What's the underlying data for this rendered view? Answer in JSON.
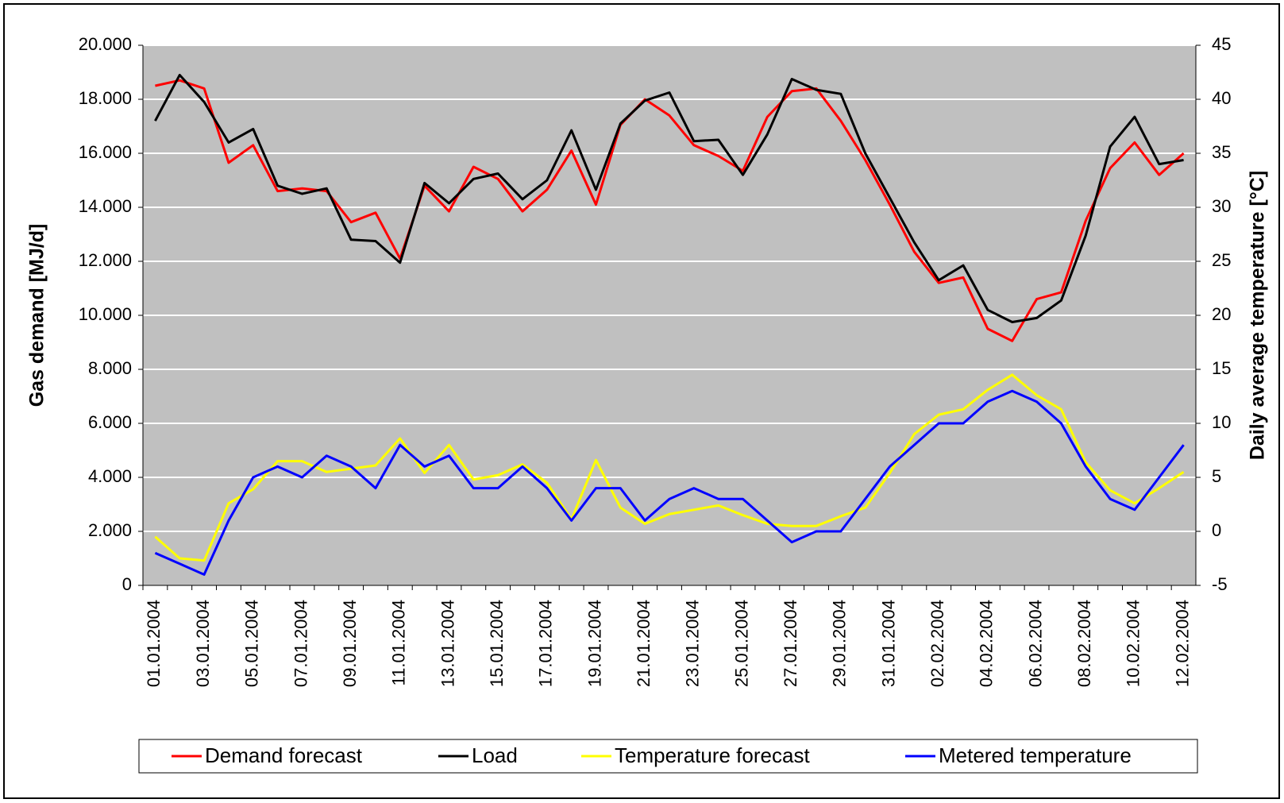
{
  "chart_data": {
    "type": "line",
    "categories": [
      "01.01.2004",
      null,
      "03.01.2004",
      null,
      "05.01.2004",
      null,
      "07.01.2004",
      null,
      "09.01.2004",
      null,
      "11.01.2004",
      null,
      "13.01.2004",
      null,
      "15.01.2004",
      null,
      "17.01.2004",
      null,
      "19.01.2004",
      null,
      "21.01.2004",
      null,
      "23.01.2004",
      null,
      "25.01.2004",
      null,
      "27.01.2004",
      null,
      "29.01.2004",
      null,
      "31.01.2004",
      null,
      "02.02.2004",
      null,
      "04.02.2004",
      null,
      "06.02.2004",
      null,
      "08.02.2004",
      null,
      "10.02.2004",
      null,
      "12.02.2004"
    ],
    "ylabel": "Gas demand [MJ/d]",
    "y2label": "Daily average temperature [°C]",
    "ylim": [
      0,
      20000
    ],
    "yticks": [
      0,
      {
        "value": 2000,
        "label": "2.000"
      },
      {
        "value": 4000,
        "label": "4.000"
      },
      {
        "value": 6000,
        "label": "6.000"
      },
      {
        "value": 8000,
        "label": "8.000"
      },
      {
        "value": 10000,
        "label": "10.000"
      },
      {
        "value": 12000,
        "label": "12.000"
      },
      {
        "value": 14000,
        "label": "14.000"
      },
      {
        "value": 16000,
        "label": "16.000"
      },
      {
        "value": 18000,
        "label": "18.000"
      },
      {
        "value": 20000,
        "label": "20.000"
      }
    ],
    "y2lim": [
      -5,
      45
    ],
    "y2ticks": [
      -5,
      0,
      5,
      10,
      15,
      20,
      25,
      30,
      35,
      40,
      45
    ],
    "grid": true,
    "legend": "bottom",
    "series": [
      {
        "name": "Demand forecast",
        "color": "#ff0000",
        "values": [
          18500,
          18700,
          18400,
          15650,
          16300,
          14600,
          14700,
          14600,
          13450,
          13800,
          12100,
          14800,
          13850,
          15500,
          15050,
          13850,
          14650,
          16100,
          14100,
          17050,
          18000,
          17400,
          16300,
          15900,
          15350,
          17350,
          18300,
          18400,
          17200,
          15750,
          14100,
          12350,
          11200,
          11400,
          9500,
          9050,
          10600,
          10850,
          13500,
          15450,
          16400,
          15200,
          16000
        ]
      },
      {
        "name": "Load",
        "color": "#000000",
        "values": [
          17200,
          18900,
          17900,
          16400,
          16900,
          14800,
          14500,
          14700,
          12800,
          12750,
          11950,
          14900,
          14150,
          15050,
          15250,
          14300,
          15000,
          16850,
          14650,
          17100,
          17950,
          18250,
          16450,
          16500,
          15200,
          16700,
          18750,
          18350,
          18200,
          16000,
          14350,
          12700,
          11300,
          11850,
          10200,
          9750,
          9900,
          10550,
          12950,
          16250,
          17350,
          15600,
          15750
        ]
      },
      {
        "name": "Temperature forecast",
        "color": "#ffff00",
        "axis": "y2",
        "values": [
          -0.5,
          -2.5,
          -2.7,
          2.6,
          3.9,
          6.5,
          6.5,
          5.5,
          5.8,
          6.1,
          8.6,
          5.4,
          8,
          4.8,
          5.2,
          6.2,
          4.5,
          1.1,
          6.6,
          2.2,
          0.7,
          1.6,
          2,
          2.4,
          1.5,
          0.7,
          0.5,
          0.5,
          1.4,
          2.2,
          5.4,
          9,
          10.8,
          11.3,
          13.1,
          14.5,
          12.6,
          11.3,
          6.4,
          3.8,
          2.6,
          4,
          5.5
        ]
      },
      {
        "name": "Metered temperature",
        "color": "#0000ff",
        "axis": "y2",
        "values": [
          -2,
          -3,
          -4,
          1,
          5,
          6,
          5,
          7,
          6,
          4,
          8,
          6,
          7,
          4,
          4,
          6,
          4,
          1,
          4,
          4,
          1,
          3,
          4,
          3,
          3,
          1,
          -1,
          0,
          0,
          3,
          6,
          8,
          10,
          10,
          12,
          13,
          12,
          10,
          6,
          3,
          2,
          5,
          8
        ]
      }
    ]
  }
}
